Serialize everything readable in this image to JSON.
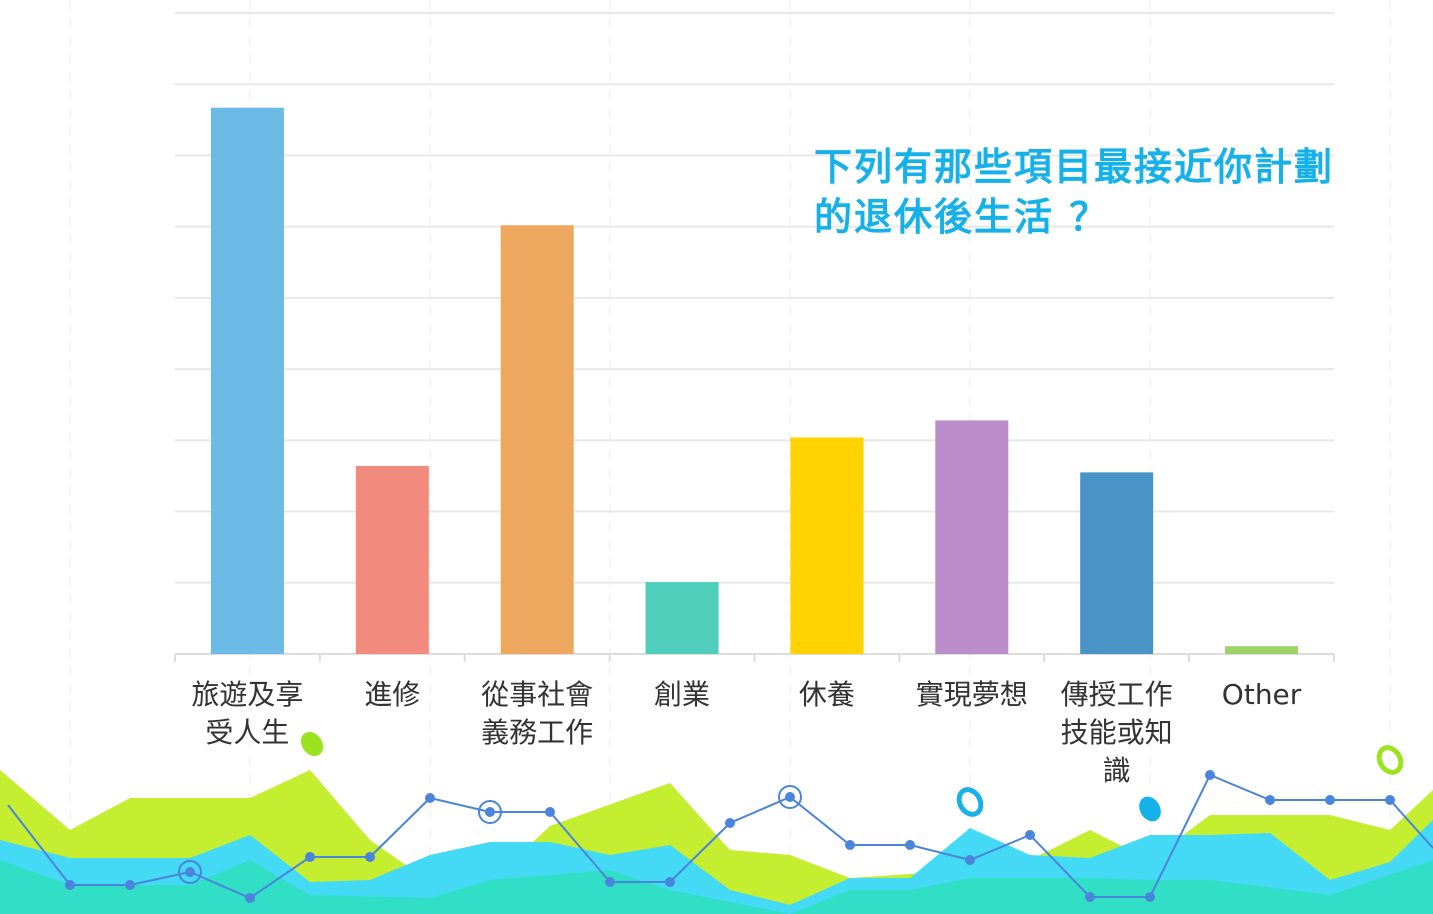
{
  "chart_data": {
    "type": "bar",
    "title": "下列有那些項目最接近你計劃的退休後生活 ？",
    "categories": [
      "旅遊及享受人生",
      "進修",
      "從事社會義務工作",
      "創業",
      "休養",
      "實現夢想",
      "傳授工作技能或知識",
      "Other"
    ],
    "values": [
      7.67,
      2.64,
      6.02,
      1.01,
      3.04,
      3.28,
      2.55,
      0.11
    ],
    "colors": [
      "#6bbbe6",
      "#f08b7d",
      "#eda75e",
      "#4fcfbb",
      "#ffd200",
      "#bb8ecb",
      "#4894c6",
      "#9ed36a"
    ],
    "ylim": [
      0,
      9
    ],
    "yticks": [
      0,
      1,
      2,
      3,
      4,
      5,
      6,
      7,
      8,
      9
    ],
    "grid": true
  }
}
